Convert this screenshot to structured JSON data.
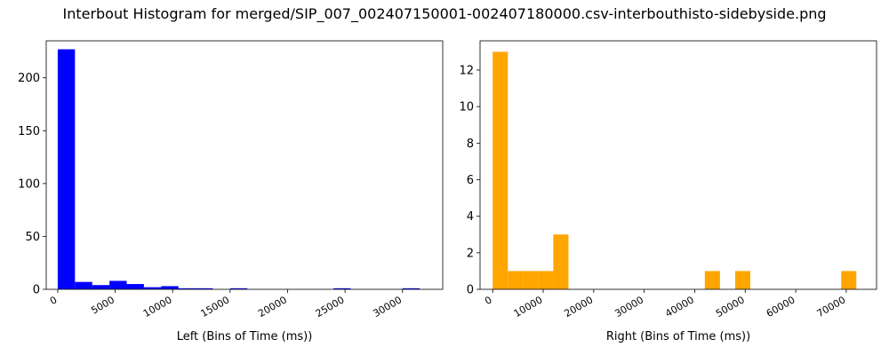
{
  "figure": {
    "title": "Interbout Histogram for merged/SIP_007_002407150001-002407180000.csv-interbouthisto-sidebyside.png"
  },
  "chart_data": [
    {
      "type": "bar",
      "title": "",
      "xlabel": "Left (Bins of Time (ms))",
      "ylabel": "",
      "color": "#0000ff",
      "xlim": [
        -1000,
        33500
      ],
      "ylim": [
        0,
        235
      ],
      "xticks": [
        0,
        5000,
        10000,
        15000,
        20000,
        25000,
        30000
      ],
      "yticks": [
        0,
        50,
        100,
        150,
        200
      ],
      "bin_edges": [
        0,
        1500,
        3000,
        4500,
        6000,
        7500,
        9000,
        10500,
        12000,
        13500,
        15000,
        16500,
        18000,
        19500,
        21000,
        22500,
        24000,
        25500,
        27000,
        28500,
        30000,
        31500
      ],
      "values": [
        227,
        7,
        4,
        8,
        5,
        2,
        3,
        1,
        1,
        0,
        1,
        0,
        0,
        0,
        0,
        0,
        1,
        0,
        0,
        0,
        1
      ]
    },
    {
      "type": "bar",
      "title": "",
      "xlabel": "Right (Bins of Time (ms))",
      "ylabel": "",
      "color": "#ffa500",
      "xlim": [
        -2500,
        76000
      ],
      "ylim": [
        0,
        13.6
      ],
      "xticks": [
        0,
        10000,
        20000,
        30000,
        40000,
        50000,
        60000,
        70000
      ],
      "yticks": [
        0,
        2,
        4,
        6,
        8,
        10,
        12
      ],
      "bin_edges": [
        0,
        3000,
        6000,
        9000,
        12000,
        15000,
        18000,
        21000,
        24000,
        27000,
        30000,
        33000,
        36000,
        39000,
        42000,
        45000,
        48000,
        51000,
        54000,
        57000,
        60000,
        63000,
        66000,
        69000,
        72000
      ],
      "values": [
        13,
        1,
        1,
        1,
        3,
        0,
        0,
        0,
        0,
        0,
        0,
        0,
        0,
        0,
        1,
        0,
        1,
        0,
        0,
        0,
        0,
        0,
        0,
        1
      ]
    }
  ]
}
